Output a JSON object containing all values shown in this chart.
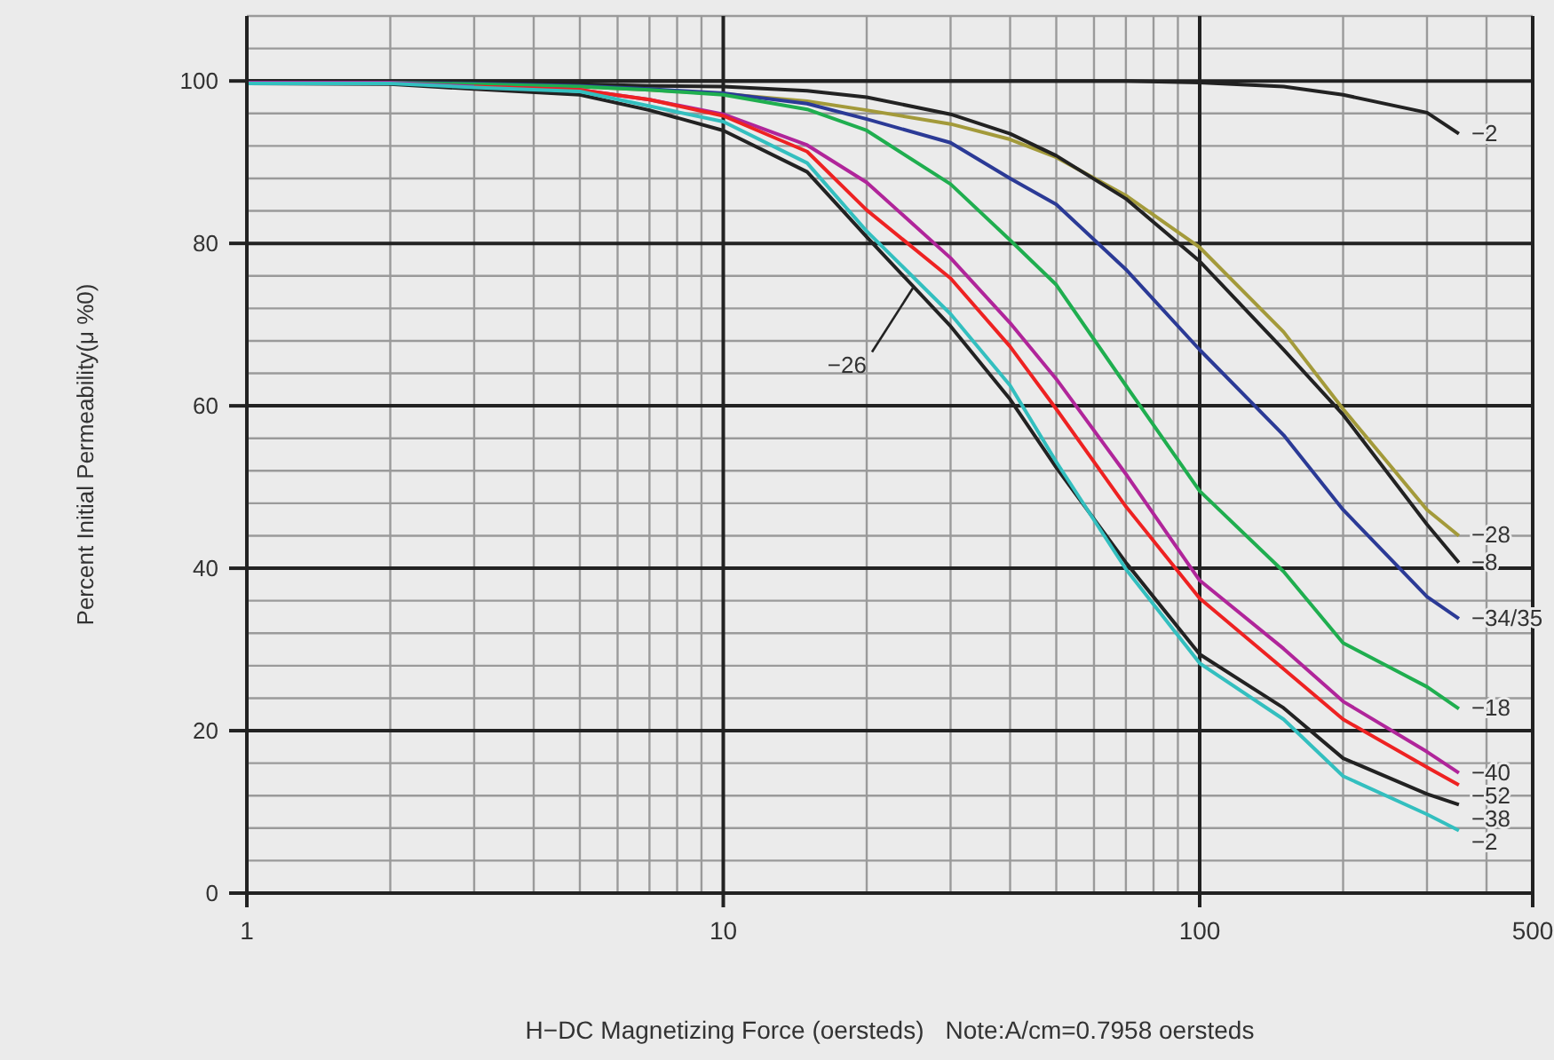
{
  "chart_data": {
    "type": "line",
    "xlabel": "H−DC Magnetizing Force (oersteds)",
    "ylabel": "Percent Initial Permeability(μ %0)",
    "annotations": [
      "Note:A/cm=0.7958 oersteds",
      {
        "text": "−26",
        "x": 25,
        "y": 74.5
      }
    ],
    "log": "x",
    "grid": true,
    "legend": false,
    "marker": "none",
    "line_style": "solid",
    "xlim": [
      1,
      500
    ],
    "xticks": [
      1,
      10,
      100,
      500
    ],
    "ylim": [
      0,
      108
    ],
    "yticks": [
      0,
      20,
      40,
      60,
      80,
      100
    ],
    "x": [
      1,
      2,
      3,
      5,
      7,
      10,
      15,
      20,
      30,
      40,
      50,
      70,
      100,
      150,
      200,
      300,
      350
    ],
    "series": [
      {
        "name": "−2",
        "color": "#222222",
        "values": [
          100,
          100,
          100,
          100,
          100,
          100,
          100,
          100,
          100,
          100,
          100,
          100,
          99.8,
          99.3,
          98.3,
          96.1,
          93.5
        ]
      },
      {
        "name": "−28",
        "color": "#a39a3a",
        "values": [
          null,
          null,
          99.6,
          99.3,
          98.9,
          98.4,
          97.5,
          96.4,
          94.7,
          92.8,
          90.6,
          85.9,
          79.5,
          69.1,
          59.6,
          47.2,
          44
        ]
      },
      {
        "name": "−8",
        "color": "#222222",
        "values": [
          100,
          99.9,
          99.8,
          99.6,
          99.4,
          99.3,
          98.8,
          98,
          95.9,
          93.5,
          90.8,
          85.5,
          77.8,
          66.9,
          58.9,
          45.4,
          40.7
        ]
      },
      {
        "name": "−34/35",
        "color": "#2b3a96",
        "values": [
          99.8,
          99.8,
          99.7,
          99.4,
          99,
          98.5,
          97.2,
          95.3,
          92.4,
          88,
          84.8,
          76.8,
          66.9,
          56.4,
          47.2,
          36.5,
          33.8
        ]
      },
      {
        "name": "−18",
        "color": "#1fae4f",
        "values": [
          null,
          99.8,
          99.6,
          99.3,
          98.9,
          98.3,
          96.5,
          93.9,
          87.3,
          80.4,
          74.9,
          62.5,
          49.5,
          39.6,
          30.8,
          25.4,
          22.7
        ]
      },
      {
        "name": "−40",
        "color": "#b0259a",
        "values": [
          99.8,
          99.8,
          99.3,
          98.9,
          97.7,
          95.9,
          92.1,
          87.5,
          78.2,
          70.2,
          63.3,
          51.6,
          38.5,
          30.1,
          23.6,
          17.4,
          14.8
        ]
      },
      {
        "name": "−52",
        "color": "#ee2222",
        "values": [
          null,
          null,
          99.3,
          98.9,
          97.7,
          95.7,
          91.3,
          84.1,
          75.7,
          67.3,
          59.6,
          47.6,
          36.3,
          27.6,
          21.4,
          15.5,
          13.3
        ]
      },
      {
        "name": "−38",
        "color": "#222222",
        "values": [
          99.7,
          99.6,
          99,
          98.3,
          96.4,
          93.9,
          88.8,
          80.8,
          69.8,
          60.8,
          52.4,
          40.7,
          29.4,
          22.8,
          16.6,
          12.2,
          10.9
        ]
      },
      {
        "name": "−2",
        "color": "#33bfbf",
        "values": [
          99.7,
          99.7,
          99.2,
          98.7,
          96.9,
          95,
          89.9,
          81.5,
          71.3,
          62.5,
          53.1,
          39.9,
          28.3,
          21.4,
          14.4,
          9.7,
          7.7
        ]
      }
    ]
  }
}
